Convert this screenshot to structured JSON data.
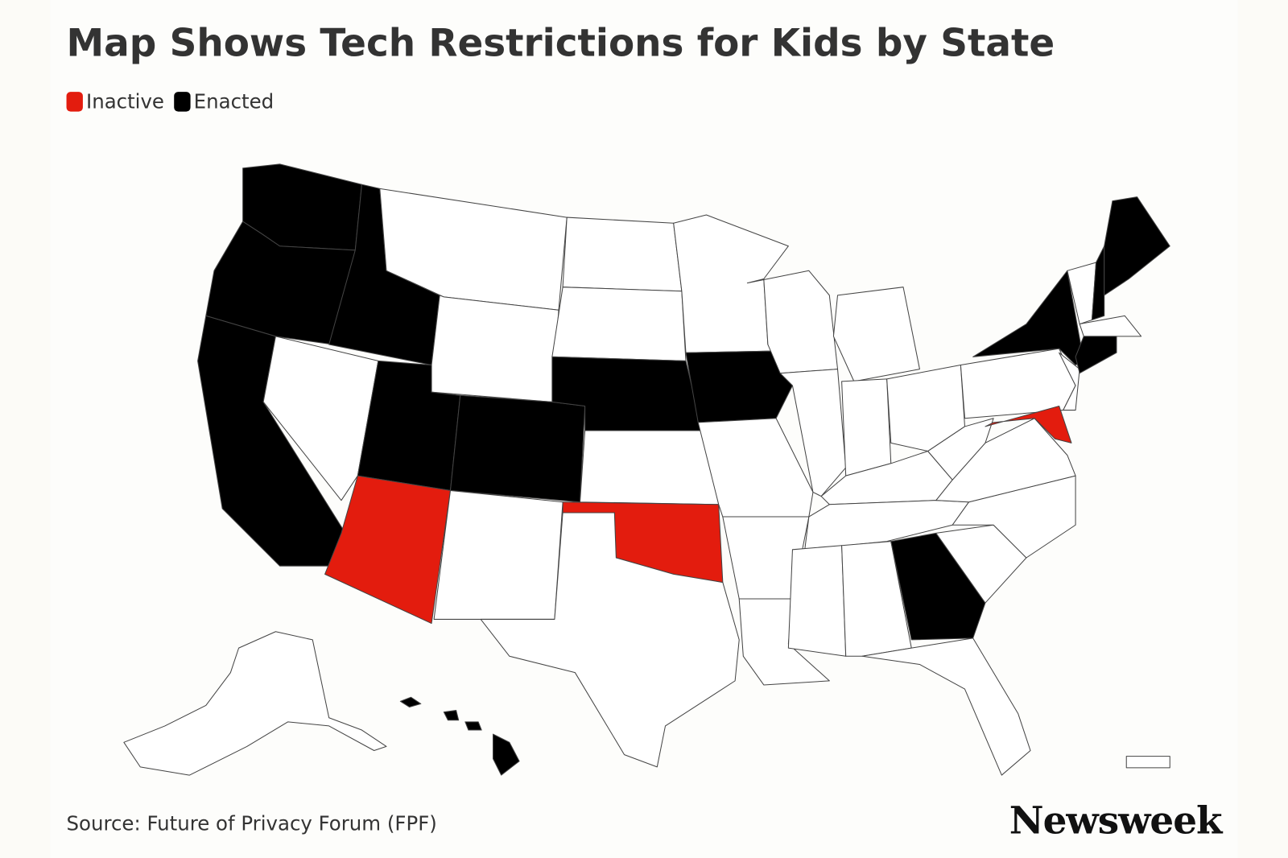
{
  "title": "Map Shows Tech Restrictions for Kids by State",
  "legend": [
    {
      "label": "Inactive",
      "color": "#e31c0e"
    },
    {
      "label": "Enacted",
      "color": "#000000"
    }
  ],
  "source": "Source: Future of Privacy Forum (FPF)",
  "brand": "Newsweek"
}
